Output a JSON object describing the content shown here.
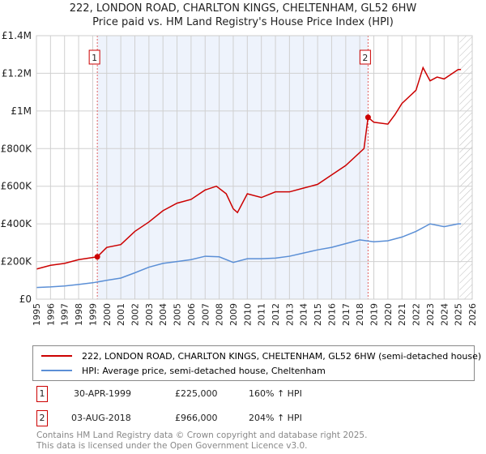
{
  "chart_data": {
    "type": "line",
    "title": "222, LONDON ROAD, CHARLTON KINGS, CHELTENHAM, GL52 6HW",
    "subtitle": "Price paid vs. HM Land Registry's House Price Index (HPI)",
    "xlim": [
      1995,
      2026
    ],
    "ylim": [
      0,
      1400000
    ],
    "x_ticks": [
      "1995",
      "1996",
      "1997",
      "1998",
      "1999",
      "2000",
      "2001",
      "2002",
      "2003",
      "2004",
      "2005",
      "2006",
      "2007",
      "2008",
      "2009",
      "2010",
      "2011",
      "2012",
      "2013",
      "2014",
      "2015",
      "2016",
      "2017",
      "2018",
      "2019",
      "2020",
      "2021",
      "2022",
      "2023",
      "2024",
      "2025",
      "2026"
    ],
    "y_ticks": [
      {
        "v": 0,
        "label": "£0"
      },
      {
        "v": 200000,
        "label": "£200K"
      },
      {
        "v": 400000,
        "label": "£400K"
      },
      {
        "v": 600000,
        "label": "£600K"
      },
      {
        "v": 800000,
        "label": "£800K"
      },
      {
        "v": 1000000,
        "label": "£1M"
      },
      {
        "v": 1200000,
        "label": "£1.2M"
      },
      {
        "v": 1400000,
        "label": "£1.4M"
      }
    ],
    "series": [
      {
        "name": "222, LONDON ROAD, CHARLTON KINGS, CHELTENHAM, GL52 6HW (semi-detached house)",
        "color": "#cc0000",
        "x": [
          1995,
          1996,
          1997,
          1998,
          1999.33,
          2000,
          2001,
          2002,
          2003,
          2004,
          2005,
          2006,
          2007,
          2007.8,
          2008.5,
          2009,
          2009.3,
          2010,
          2011,
          2012,
          2013,
          2014,
          2015,
          2016,
          2017,
          2018.3,
          2018.59,
          2019,
          2020,
          2020.5,
          2021,
          2022,
          2022.5,
          2023,
          2023.5,
          2024,
          2025,
          2025.2
        ],
        "y": [
          160000,
          180000,
          190000,
          210000,
          225000,
          275000,
          290000,
          360000,
          410000,
          470000,
          510000,
          530000,
          580000,
          600000,
          560000,
          480000,
          460000,
          560000,
          540000,
          570000,
          570000,
          590000,
          610000,
          660000,
          710000,
          800000,
          966000,
          940000,
          930000,
          980000,
          1040000,
          1110000,
          1230000,
          1160000,
          1180000,
          1170000,
          1220000,
          1220000
        ]
      },
      {
        "name": "HPI: Average price, semi-detached house, Cheltenham",
        "color": "#5b8fd6",
        "x": [
          1995,
          1996,
          1997,
          1998,
          1999,
          2000,
          2001,
          2002,
          2003,
          2004,
          2005,
          2006,
          2007,
          2008,
          2009,
          2010,
          2011,
          2012,
          2013,
          2014,
          2015,
          2016,
          2017,
          2018,
          2019,
          2020,
          2021,
          2022,
          2023,
          2024,
          2025,
          2025.2
        ],
        "y": [
          62000,
          65000,
          70000,
          78000,
          87000,
          100000,
          112000,
          140000,
          170000,
          190000,
          200000,
          210000,
          228000,
          225000,
          195000,
          215000,
          215000,
          218000,
          228000,
          245000,
          262000,
          275000,
          295000,
          315000,
          305000,
          310000,
          330000,
          360000,
          400000,
          385000,
          400000,
          400000
        ]
      }
    ],
    "sales": [
      {
        "label": "1",
        "x": 1999.33,
        "date": "30-APR-1999",
        "price": "£225,000",
        "value": 225000,
        "hpi": "160% ↑ HPI"
      },
      {
        "label": "2",
        "x": 2018.59,
        "date": "03-AUG-2018",
        "price": "£966,000",
        "value": 966000,
        "hpi": "204% ↑ HPI"
      }
    ],
    "forecast_start": 2025.1
  },
  "footer": {
    "line1": "Contains HM Land Registry data © Crown copyright and database right 2025.",
    "line2": "This data is licensed under the Open Government Licence v3.0."
  }
}
